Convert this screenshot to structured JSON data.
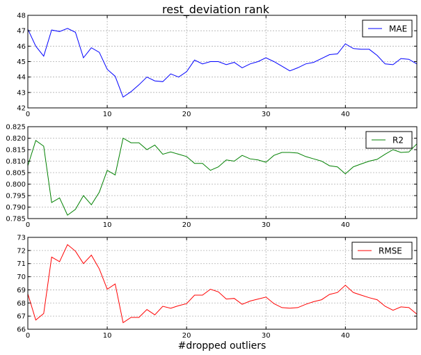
{
  "chart_data": [
    {
      "type": "line",
      "title": "rest_deviation rank",
      "xlabel": "",
      "ylabel": "",
      "xlim": [
        0,
        49
      ],
      "ylim": [
        42,
        48
      ],
      "xticks": [
        0,
        10,
        20,
        30,
        40
      ],
      "yticks": [
        42,
        43,
        44,
        45,
        46,
        47,
        48
      ],
      "ytick_labels": [
        "42",
        "43",
        "44",
        "45",
        "46",
        "47",
        "48"
      ],
      "grid": true,
      "legend_position": "upper right",
      "series": [
        {
          "name": "MAE",
          "color": "#0000ff",
          "x": [
            0,
            1,
            2,
            3,
            4,
            5,
            6,
            7,
            8,
            9,
            10,
            11,
            12,
            13,
            14,
            15,
            16,
            17,
            18,
            19,
            20,
            21,
            22,
            23,
            24,
            25,
            26,
            27,
            28,
            29,
            30,
            31,
            32,
            33,
            34,
            35,
            36,
            37,
            38,
            39,
            40,
            41,
            42,
            43,
            44,
            45,
            46,
            47,
            48,
            49
          ],
          "y": [
            47.1,
            46.0,
            45.35,
            47.05,
            46.95,
            47.15,
            46.9,
            45.25,
            45.9,
            45.6,
            44.5,
            44.05,
            42.7,
            43.05,
            43.5,
            44.0,
            43.75,
            43.7,
            44.2,
            44.0,
            44.35,
            45.1,
            44.85,
            45.0,
            45.0,
            44.8,
            44.95,
            44.6,
            44.85,
            45.0,
            45.25,
            45.0,
            44.7,
            44.4,
            44.6,
            44.85,
            44.95,
            45.2,
            45.45,
            45.5,
            46.15,
            45.85,
            45.8,
            45.8,
            45.4,
            44.85,
            44.8,
            45.2,
            45.15,
            44.85
          ]
        }
      ]
    },
    {
      "type": "line",
      "title": "",
      "xlabel": "",
      "ylabel": "",
      "xlim": [
        0,
        49
      ],
      "ylim": [
        0.785,
        0.825
      ],
      "xticks": [
        0,
        10,
        20,
        30,
        40
      ],
      "yticks": [
        0.785,
        0.79,
        0.795,
        0.8,
        0.805,
        0.81,
        0.815,
        0.82,
        0.825
      ],
      "ytick_labels": [
        "0.785",
        "0.790",
        "0.795",
        "0.800",
        "0.805",
        "0.810",
        "0.815",
        "0.820",
        "0.825"
      ],
      "grid": true,
      "legend_position": "upper right",
      "series": [
        {
          "name": "R2",
          "color": "#008000",
          "x": [
            0,
            1,
            2,
            3,
            4,
            5,
            6,
            7,
            8,
            9,
            10,
            11,
            12,
            13,
            14,
            15,
            16,
            17,
            18,
            19,
            20,
            21,
            22,
            23,
            24,
            25,
            26,
            27,
            28,
            29,
            30,
            31,
            32,
            33,
            34,
            35,
            36,
            37,
            38,
            39,
            40,
            41,
            42,
            43,
            44,
            45,
            46,
            47,
            48,
            49
          ],
          "y": [
            0.808,
            0.819,
            0.8165,
            0.792,
            0.794,
            0.7865,
            0.789,
            0.795,
            0.791,
            0.7965,
            0.806,
            0.804,
            0.82,
            0.818,
            0.818,
            0.815,
            0.817,
            0.813,
            0.814,
            0.813,
            0.812,
            0.809,
            0.809,
            0.806,
            0.8075,
            0.8105,
            0.81,
            0.8125,
            0.811,
            0.8105,
            0.8095,
            0.8125,
            0.8138,
            0.8138,
            0.8135,
            0.812,
            0.811,
            0.81,
            0.808,
            0.8075,
            0.8045,
            0.8075,
            0.8088,
            0.81,
            0.8108,
            0.813,
            0.815,
            0.8138,
            0.814,
            0.8175
          ]
        }
      ]
    },
    {
      "type": "line",
      "title": "",
      "xlabel": "#dropped outliers",
      "ylabel": "",
      "xlim": [
        0,
        49
      ],
      "ylim": [
        66,
        73
      ],
      "xticks": [
        0,
        10,
        20,
        30,
        40
      ],
      "yticks": [
        66,
        67,
        68,
        69,
        70,
        71,
        72,
        73
      ],
      "ytick_labels": [
        "66",
        "67",
        "68",
        "69",
        "70",
        "71",
        "72",
        "73"
      ],
      "grid": true,
      "legend_position": "upper right",
      "series": [
        {
          "name": "RMSE",
          "color": "#ff0000",
          "x": [
            0,
            1,
            2,
            3,
            4,
            5,
            6,
            7,
            8,
            9,
            10,
            11,
            12,
            13,
            14,
            15,
            16,
            17,
            18,
            19,
            20,
            21,
            22,
            23,
            24,
            25,
            26,
            27,
            28,
            29,
            30,
            31,
            32,
            33,
            34,
            35,
            36,
            37,
            38,
            39,
            40,
            41,
            42,
            43,
            44,
            45,
            46,
            47,
            48,
            49
          ],
          "y": [
            68.7,
            66.7,
            67.2,
            71.5,
            71.15,
            72.45,
            71.95,
            71.0,
            71.65,
            70.6,
            69.05,
            69.45,
            66.5,
            66.9,
            66.9,
            67.5,
            67.1,
            67.75,
            67.6,
            67.8,
            67.95,
            68.6,
            68.6,
            69.05,
            68.85,
            68.3,
            68.35,
            67.9,
            68.15,
            68.3,
            68.45,
            67.95,
            67.65,
            67.6,
            67.65,
            67.9,
            68.1,
            68.25,
            68.65,
            68.8,
            69.35,
            68.8,
            68.6,
            68.4,
            68.25,
            67.75,
            67.45,
            67.7,
            67.65,
            67.15
          ]
        }
      ]
    }
  ]
}
